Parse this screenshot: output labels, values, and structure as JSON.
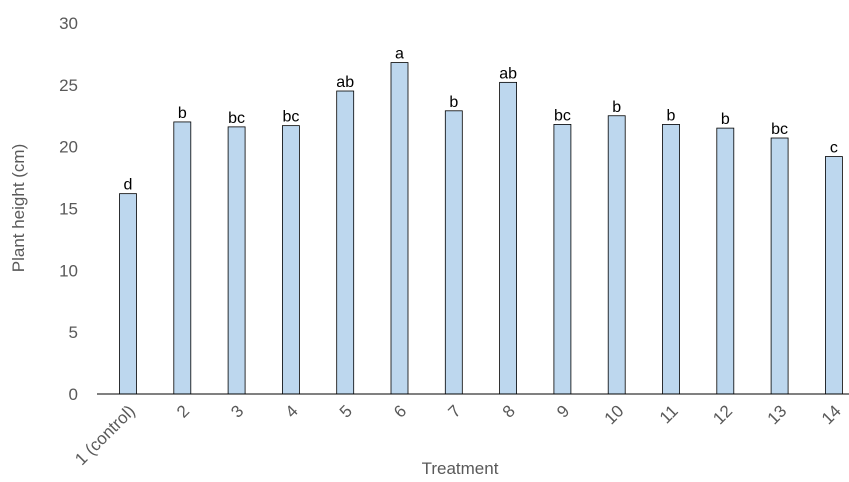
{
  "chart_data": {
    "type": "bar",
    "title": "",
    "xlabel": "Treatment",
    "ylabel": "Plant height (cm)",
    "ylim": [
      0,
      30
    ],
    "yticks": [
      0,
      5,
      10,
      15,
      20,
      25,
      30
    ],
    "grid": false,
    "legend": "none",
    "categories": [
      "1 (control)",
      "2",
      "3",
      "4",
      "5",
      "6",
      "7",
      "8",
      "9",
      "10",
      "11",
      "12",
      "13",
      "14"
    ],
    "values": [
      16.2,
      22.0,
      21.6,
      21.7,
      24.5,
      26.8,
      22.9,
      25.2,
      21.8,
      22.5,
      21.8,
      21.5,
      20.7,
      19.2
    ],
    "annotations": [
      "d",
      "b",
      "bc",
      "bc",
      "ab",
      "a",
      "b",
      "ab",
      "bc",
      "b",
      "b",
      "b",
      "bc",
      "c"
    ],
    "colors": {
      "bar_fill": "#bdd7ee",
      "bar_stroke": "#000000",
      "axis": "#000000",
      "text": "#595959"
    }
  }
}
